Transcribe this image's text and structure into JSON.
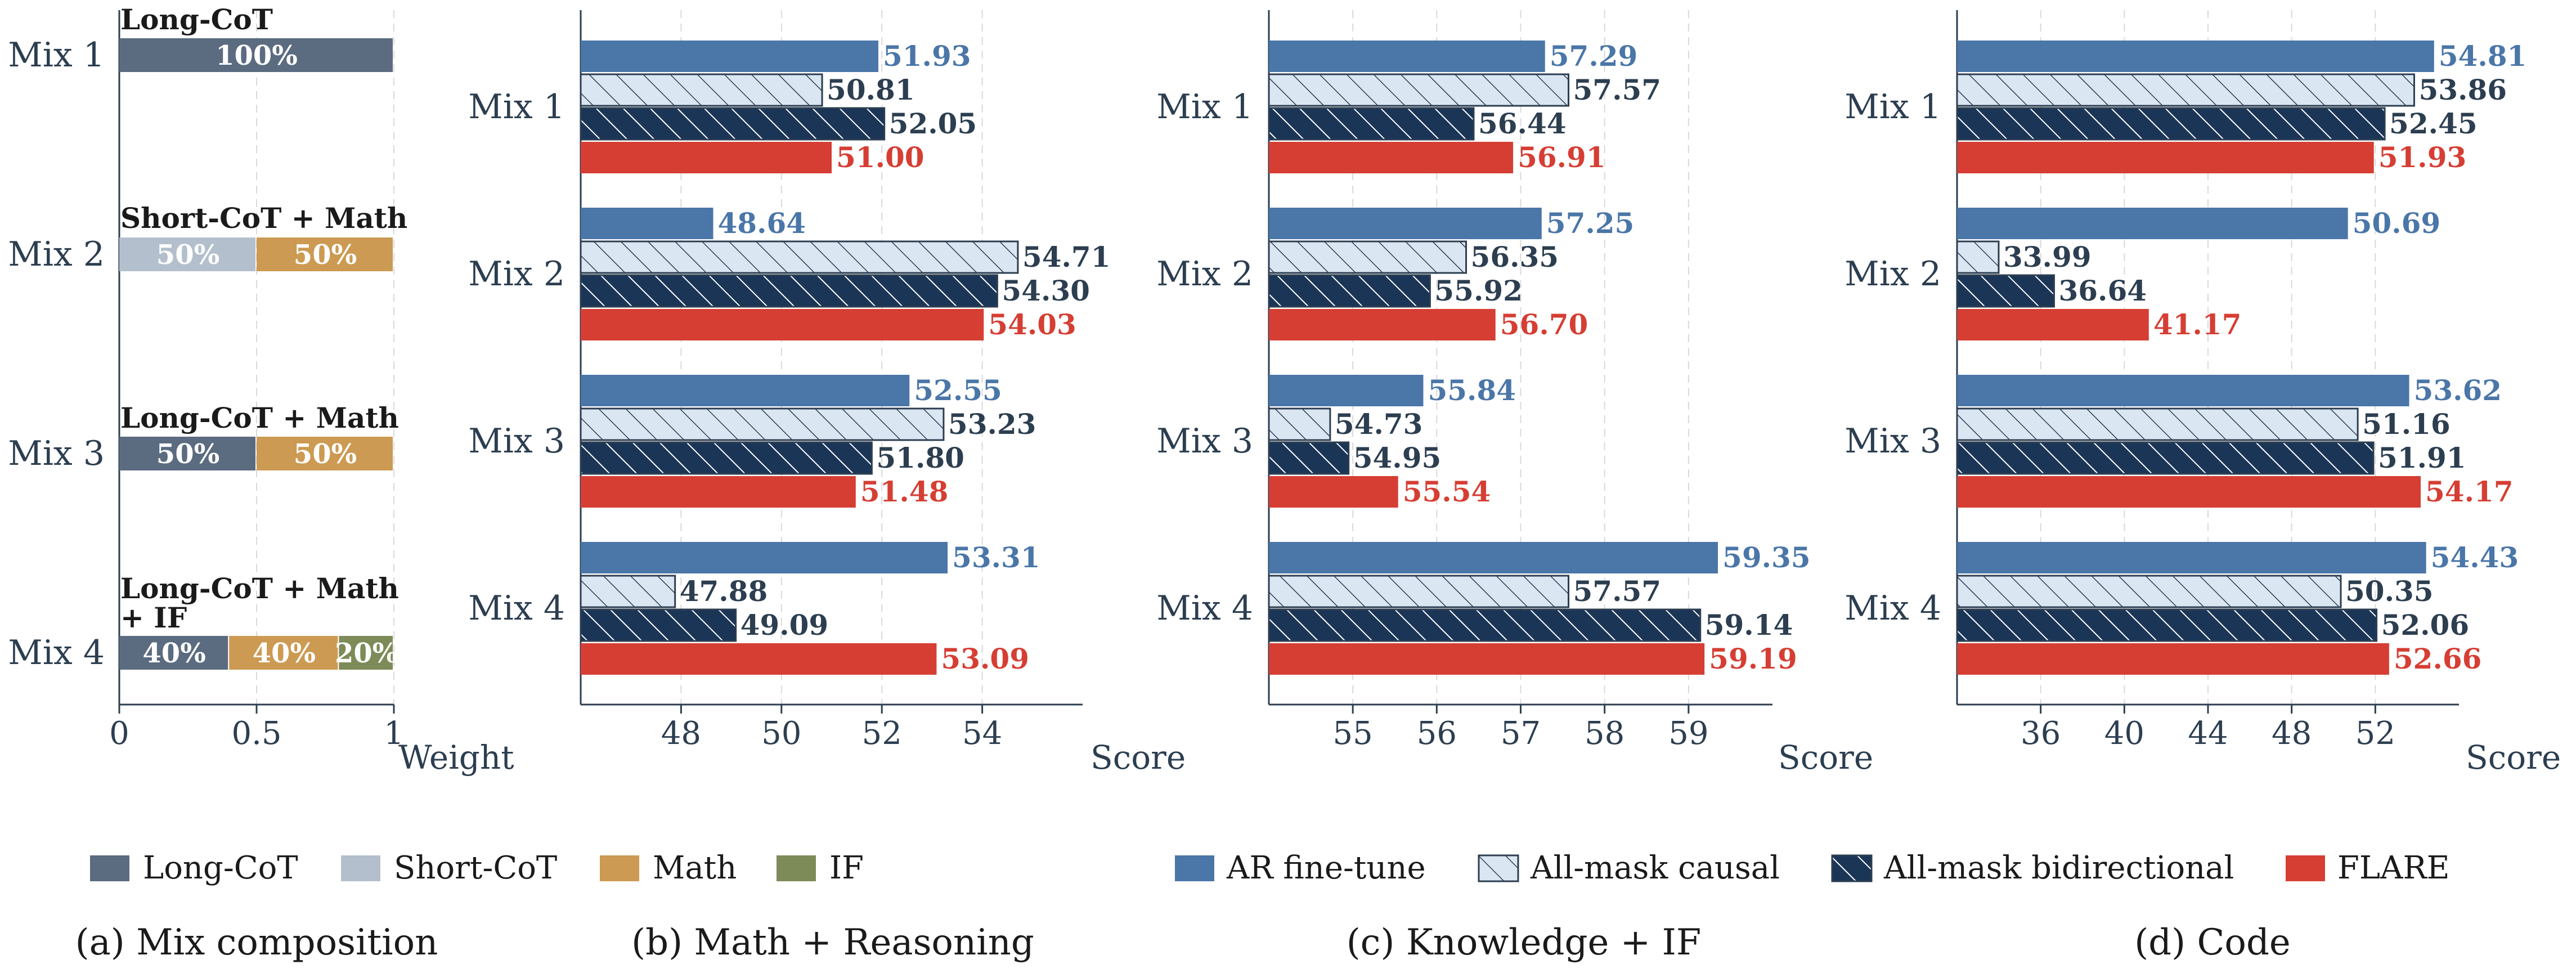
{
  "colors": {
    "axis": "#2c3e50",
    "grid": "#d9d9d9",
    "long_cot": "#5b6b80",
    "short_cot": "#b3bfcd",
    "math": "#cc9a52",
    "if": "#7d8b58",
    "ar": "#4a76a8",
    "causal_fill": "#dbe6f3",
    "causal_edge": "#2c3e50",
    "bidir": "#1b3557",
    "flare": "#d63e33"
  },
  "legends": {
    "composition": [
      {
        "key": "long_cot",
        "label": "Long-CoT"
      },
      {
        "key": "short_cot",
        "label": "Short-CoT"
      },
      {
        "key": "math",
        "label": "Math"
      },
      {
        "key": "if",
        "label": "IF"
      }
    ],
    "methods": [
      {
        "key": "ar",
        "label": "AR fine-tune"
      },
      {
        "key": "causal",
        "label": "All-mask causal"
      },
      {
        "key": "bidir",
        "label": "All-mask bidirectional"
      },
      {
        "key": "flare",
        "label": "FLARE"
      }
    ]
  },
  "chart_data": [
    {
      "type": "bar",
      "stacked": true,
      "orientation": "horizontal",
      "caption": "(a) Mix composition",
      "xlabel": "Weight",
      "xlim": [
        0,
        1
      ],
      "xticks": [
        0,
        0.5,
        1
      ],
      "xtick_labels": [
        "0",
        "0.5",
        "1"
      ],
      "categories": [
        "Mix 1",
        "Mix 2",
        "Mix 3",
        "Mix 4"
      ],
      "mix_titles": [
        "Long-CoT",
        "Short-CoT + Math",
        "Long-CoT + Math",
        "Long-CoT + Math\n+ IF"
      ],
      "segments": [
        [
          {
            "key": "long_cot",
            "value": 1.0,
            "label": "100%"
          }
        ],
        [
          {
            "key": "short_cot",
            "value": 0.5,
            "label": "50%"
          },
          {
            "key": "math",
            "value": 0.5,
            "label": "50%"
          }
        ],
        [
          {
            "key": "long_cot",
            "value": 0.5,
            "label": "50%"
          },
          {
            "key": "math",
            "value": 0.5,
            "label": "50%"
          }
        ],
        [
          {
            "key": "long_cot",
            "value": 0.4,
            "label": "40%"
          },
          {
            "key": "math",
            "value": 0.4,
            "label": "40%"
          },
          {
            "key": "if",
            "value": 0.2,
            "label": "20%"
          }
        ]
      ]
    },
    {
      "type": "bar",
      "orientation": "horizontal",
      "caption": "(b) Math + Reasoning",
      "xlabel": "Score",
      "xlim": [
        46.0,
        56.0
      ],
      "xticks": [
        48,
        50,
        52,
        54
      ],
      "categories": [
        "Mix 1",
        "Mix 2",
        "Mix 3",
        "Mix 4"
      ],
      "series": [
        {
          "key": "ar",
          "values": [
            51.93,
            48.64,
            52.55,
            53.31
          ],
          "labels": [
            "51.93",
            "48.64",
            "52.55",
            "53.31"
          ]
        },
        {
          "key": "causal",
          "values": [
            50.81,
            54.71,
            53.23,
            47.88
          ],
          "labels": [
            "50.81",
            "54.71",
            "53.23",
            "47.88"
          ]
        },
        {
          "key": "bidir",
          "values": [
            52.05,
            54.3,
            51.8,
            49.09
          ],
          "labels": [
            "52.05",
            "54.30",
            "51.80",
            "49.09"
          ]
        },
        {
          "key": "flare",
          "values": [
            51.0,
            54.03,
            51.48,
            53.09
          ],
          "labels": [
            "51.00",
            "54.03",
            "51.48",
            "53.09"
          ]
        }
      ]
    },
    {
      "type": "bar",
      "orientation": "horizontal",
      "caption": "(c) Knowledge + IF",
      "xlabel": "Score",
      "xlim": [
        54.0,
        60.0
      ],
      "xticks": [
        55,
        56,
        57,
        58,
        59
      ],
      "categories": [
        "Mix 1",
        "Mix 2",
        "Mix 3",
        "Mix 4"
      ],
      "series": [
        {
          "key": "ar",
          "values": [
            57.29,
            57.25,
            55.84,
            59.35
          ],
          "labels": [
            "57.29",
            "57.25",
            "55.84",
            "59.35"
          ]
        },
        {
          "key": "causal",
          "values": [
            57.57,
            56.35,
            54.73,
            57.57
          ],
          "labels": [
            "57.57",
            "56.35",
            "54.73",
            "57.57"
          ]
        },
        {
          "key": "bidir",
          "values": [
            56.44,
            55.92,
            54.95,
            59.14
          ],
          "labels": [
            "56.44",
            "55.92",
            "54.95",
            "59.14"
          ]
        },
        {
          "key": "flare",
          "values": [
            56.91,
            56.7,
            55.54,
            59.19
          ],
          "labels": [
            "56.91",
            "56.70",
            "55.54",
            "59.19"
          ]
        }
      ]
    },
    {
      "type": "bar",
      "orientation": "horizontal",
      "caption": "(d) Code",
      "xlabel": "Score",
      "xlim": [
        32.0,
        56.0
      ],
      "xticks": [
        36,
        40,
        44,
        48,
        52
      ],
      "categories": [
        "Mix 1",
        "Mix 2",
        "Mix 3",
        "Mix 4"
      ],
      "series": [
        {
          "key": "ar",
          "values": [
            54.81,
            50.69,
            53.62,
            54.43
          ],
          "labels": [
            "54.81",
            "50.69",
            "53.62",
            "54.43"
          ]
        },
        {
          "key": "causal",
          "values": [
            53.86,
            33.99,
            51.16,
            50.35
          ],
          "labels": [
            "53.86",
            "33.99",
            "51.16",
            "50.35"
          ]
        },
        {
          "key": "bidir",
          "values": [
            52.45,
            36.64,
            51.91,
            52.06
          ],
          "labels": [
            "52.45",
            "36.64",
            "51.91",
            "52.06"
          ]
        },
        {
          "key": "flare",
          "values": [
            51.93,
            41.17,
            54.17,
            52.66
          ],
          "labels": [
            "51.93",
            "41.17",
            "54.17",
            "52.66"
          ]
        }
      ]
    }
  ]
}
